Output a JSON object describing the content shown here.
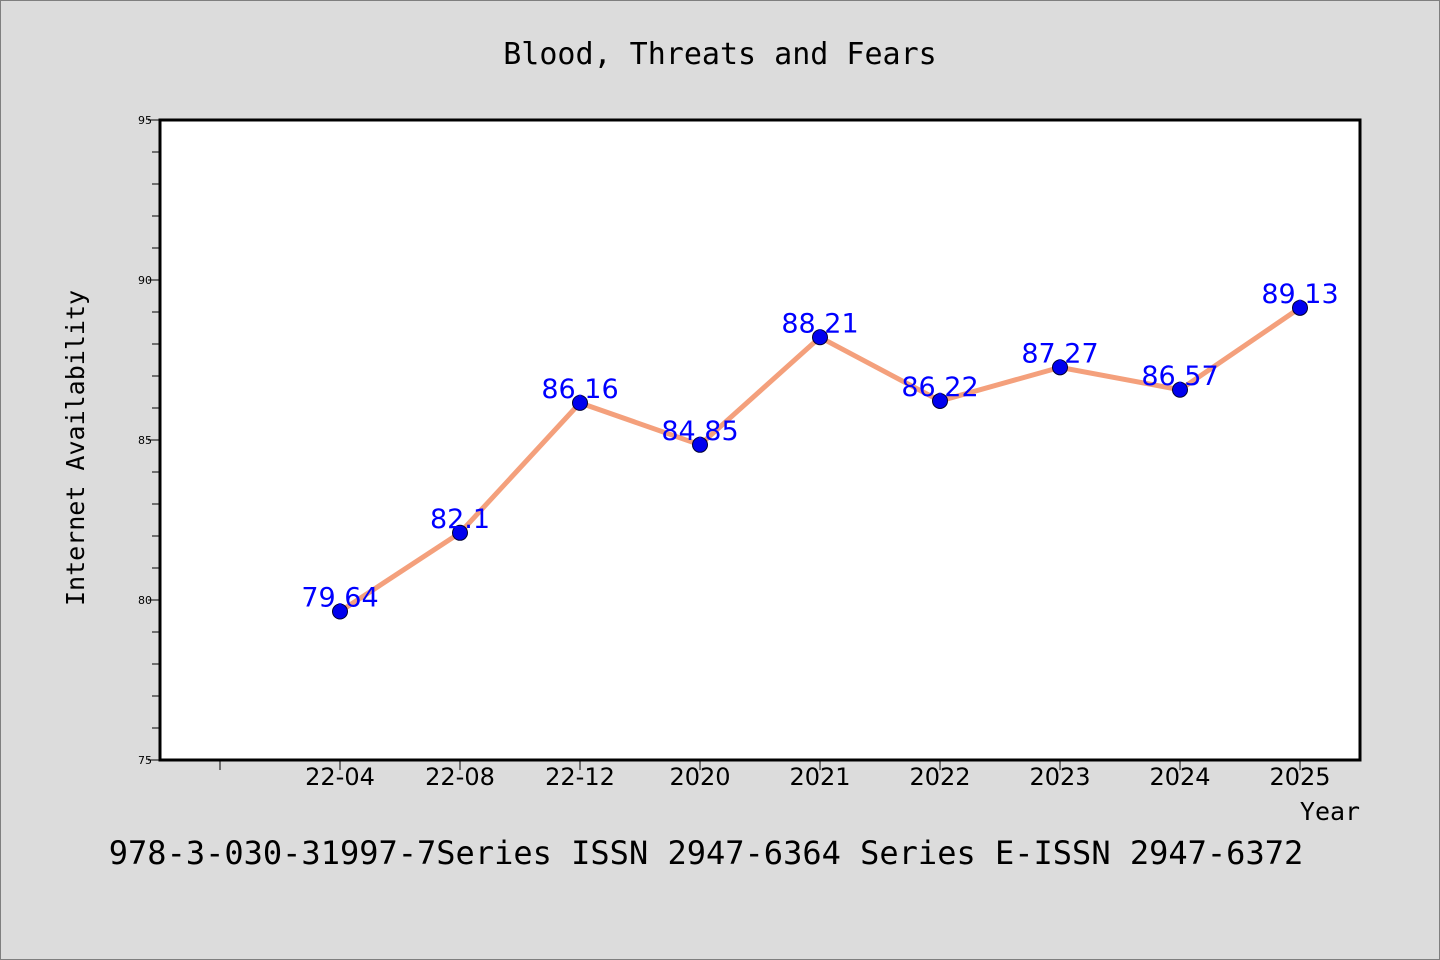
{
  "chart_data": {
    "type": "line",
    "title": "Blood, Threats and Fears",
    "xlabel": "Year",
    "ylabel": "Internet Availability",
    "categories": [
      "22-04",
      "22-08",
      "22-12",
      "2020",
      "2021",
      "2022",
      "2023",
      "2024",
      "2025"
    ],
    "series": [
      {
        "values": [
          79.64,
          82.1,
          86.16,
          84.85,
          88.21,
          86.22,
          87.27,
          86.57,
          89.13
        ],
        "labels": [
          "79.64",
          "82.1",
          "86.16",
          "84.85",
          "88.21",
          "86.22",
          "87.27",
          "86.57",
          "89.13"
        ],
        "line_color": "#f4a07c",
        "marker_color": "#0000ee",
        "label_color": "#0000ff"
      }
    ],
    "ylim": [
      75,
      95
    ],
    "yticks": [
      "75",
      "80",
      "85",
      "90",
      "95"
    ],
    "grid": false,
    "legend": "none"
  },
  "footer": "978-3-030-31997-7Series ISSN 2947-6364 Series E-ISSN 2947-6372"
}
